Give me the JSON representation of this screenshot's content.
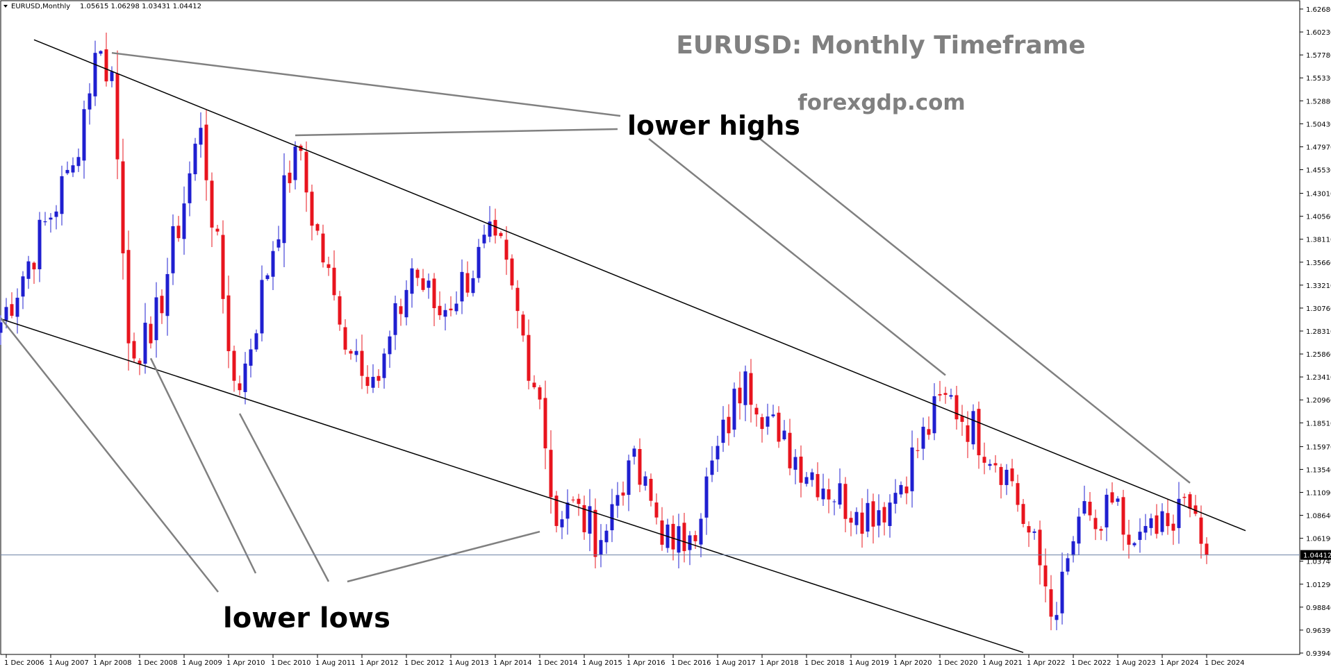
{
  "header": {
    "symbol": "EURUSD,Monthly",
    "ohlc": "1.05615 1.06298 1.03431 1.04412"
  },
  "colors": {
    "bull": "#1f1fd0",
    "bear": "#e8141e",
    "trendline": "#000000",
    "pointer": "#808080",
    "price_line": "#6a7fa3",
    "price_tag_bg": "#000000",
    "price_tag_text": "#ffffff"
  },
  "annotations": {
    "title": "EURUSD: Monthly Timeframe",
    "site": "forexgdp.com",
    "lower_highs": "lower highs",
    "lower_lows": "lower lows"
  },
  "chart_data": {
    "type": "candlestick",
    "title": "EURUSD: Monthly Timeframe",
    "symbol": "EURUSD",
    "timeframe": "Monthly",
    "ylim": [
      0.9394,
      1.6268
    ],
    "y_ticks": [
      "1.62680",
      "1.60230",
      "1.57780",
      "1.55330",
      "1.52880",
      "1.50430",
      "1.47970",
      "1.45530",
      "1.43010",
      "1.40560",
      "1.38110",
      "1.35660",
      "1.33210",
      "1.30760",
      "1.28310",
      "1.25860",
      "1.23410",
      "1.20960",
      "1.18510",
      "1.15970",
      "1.13540",
      "1.11090",
      "1.08640",
      "1.06190",
      "1.03740",
      "1.01290",
      "0.98840",
      "0.96390",
      "0.93940"
    ],
    "x_ticks": [
      "1 Dec 2006",
      "1 Aug 2007",
      "1 Apr 2008",
      "1 Dec 2008",
      "1 Aug 2009",
      "1 Apr 2010",
      "1 Dec 2010",
      "1 Aug 2011",
      "1 Apr 2012",
      "1 Dec 2012",
      "1 Aug 2013",
      "1 Apr 2014",
      "1 Dec 2014",
      "1 Aug 2015",
      "1 Apr 2016",
      "1 Dec 2016",
      "1 Aug 2017",
      "1 Apr 2018",
      "1 Dec 2018",
      "1 Aug 2019",
      "1 Apr 2020",
      "1 Dec 2020",
      "1 Aug 2021",
      "1 Apr 2022",
      "1 Dec 2022",
      "1 Aug 2023",
      "1 Apr 2024",
      "1 Dec 2024"
    ],
    "current_price": "1.04412",
    "last_candle": {
      "open": 1.05615,
      "high": 1.06298,
      "low": 1.03431,
      "close": 1.04412
    },
    "anchors": [
      {
        "date": "2006-10",
        "close": 1.28
      },
      {
        "date": "2007-12",
        "close": 1.46
      },
      {
        "date": "2008-04",
        "close": 1.58
      },
      {
        "date": "2008-07",
        "close": 1.56
      },
      {
        "date": "2008-10",
        "close": 1.27
      },
      {
        "date": "2009-02",
        "close": 1.27
      },
      {
        "date": "2009-11",
        "close": 1.5
      },
      {
        "date": "2010-05",
        "close": 1.23
      },
      {
        "date": "2010-06",
        "close": 1.22
      },
      {
        "date": "2011-04",
        "close": 1.48
      },
      {
        "date": "2011-12",
        "close": 1.29
      },
      {
        "date": "2012-07",
        "close": 1.23
      },
      {
        "date": "2013-01",
        "close": 1.35
      },
      {
        "date": "2013-06",
        "close": 1.3
      },
      {
        "date": "2014-04",
        "close": 1.385
      },
      {
        "date": "2014-12",
        "close": 1.21
      },
      {
        "date": "2015-03",
        "close": 1.075
      },
      {
        "date": "2015-05",
        "close": 1.1
      },
      {
        "date": "2015-11",
        "close": 1.06
      },
      {
        "date": "2016-04",
        "close": 1.145
      },
      {
        "date": "2016-12",
        "close": 1.05
      },
      {
        "date": "2017-03",
        "close": 1.065
      },
      {
        "date": "2018-01",
        "close": 1.24
      },
      {
        "date": "2018-07",
        "close": 1.165
      },
      {
        "date": "2019-09",
        "close": 1.09
      },
      {
        "date": "2020-03",
        "close": 1.1
      },
      {
        "date": "2021-01",
        "close": 1.215
      },
      {
        "date": "2021-12",
        "close": 1.135
      },
      {
        "date": "2022-09",
        "close": 0.98
      },
      {
        "date": "2023-01",
        "close": 1.085
      },
      {
        "date": "2023-05",
        "close": 1.07
      },
      {
        "date": "2023-07",
        "close": 1.1
      },
      {
        "date": "2023-10",
        "close": 1.055
      },
      {
        "date": "2024-06",
        "close": 1.07
      },
      {
        "date": "2024-08",
        "close": 1.105
      },
      {
        "date": "2024-10",
        "close": 1.088
      },
      {
        "date": "2024-11",
        "close": 1.056
      },
      {
        "date": "2024-12",
        "close": 1.044
      }
    ],
    "trendlines": [
      {
        "name": "upper channel",
        "from": {
          "date": "2007-05",
          "price": 1.594
        },
        "to": {
          "date": "2025-07",
          "price": 1.07
        }
      },
      {
        "name": "lower channel",
        "from": {
          "date": "2006-09",
          "price": 1.3
        },
        "to": {
          "date": "2022-03",
          "price": 0.94
        }
      }
    ]
  }
}
